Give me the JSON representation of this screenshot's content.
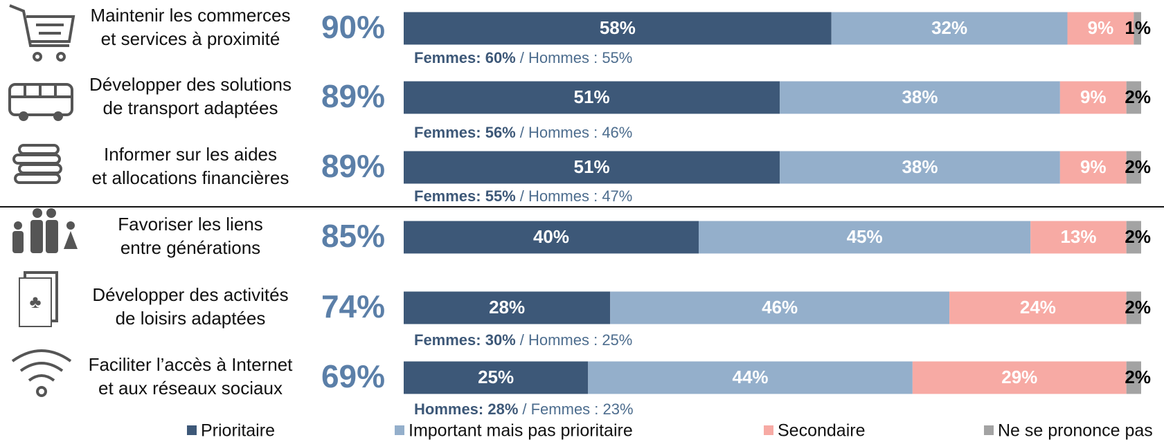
{
  "chart_data": {
    "type": "bar",
    "orientation": "horizontal",
    "stacked": true,
    "categories": [
      [
        "Maintenir les commerces",
        "et services à proximité"
      ],
      [
        "Développer des solutions",
        "de transport adaptées"
      ],
      [
        "Informer sur les aides",
        "et allocations financières"
      ],
      [
        "Favoriser les liens",
        "entre générations"
      ],
      [
        "Développer des activités",
        "de loisirs adaptées"
      ],
      [
        "Faciliter l’accès à Internet",
        "et aux réseaux sociaux"
      ]
    ],
    "xlim": [
      0,
      100
    ],
    "series": [
      {
        "name": "Prioritaire",
        "color": "#3d5878",
        "values": [
          58,
          51,
          51,
          40,
          28,
          25
        ],
        "value_labels": [
          "58%",
          "51%",
          "51%",
          "40%",
          "28%",
          "25%"
        ]
      },
      {
        "name": "Important mais pas prioritaire",
        "color": "#94afcb",
        "values": [
          32,
          38,
          38,
          45,
          46,
          44
        ],
        "value_labels": [
          "32%",
          "38%",
          "38%",
          "45%",
          "46%",
          "44%"
        ]
      },
      {
        "name": "Secondaire",
        "color": "#f7aaa4",
        "values": [
          9,
          9,
          9,
          13,
          24,
          29
        ],
        "value_labels": [
          "9%",
          "9%",
          "9%",
          "13%",
          "24%",
          "29%"
        ]
      },
      {
        "name": "Ne se prononce pas",
        "color": "#a3a3a3",
        "values": [
          1,
          2,
          2,
          2,
          2,
          2
        ],
        "value_labels": [
          "1%",
          "2%",
          "2%",
          "2%",
          "2%",
          "2%"
        ]
      }
    ],
    "totals": {
      "values": [
        90,
        89,
        89,
        85,
        74,
        69
      ],
      "value_labels": [
        "90%",
        "89%",
        "89%",
        "85%",
        "74%",
        "69%"
      ]
    },
    "notes": [
      {
        "bold": "Femmes: 60%",
        "rest": "/ Hommes : 55%"
      },
      {
        "bold": "Femmes: 56%",
        "rest": "/ Hommes : 46%"
      },
      {
        "bold": "Femmes: 55%",
        "rest": "/ Hommes : 47%"
      },
      null,
      {
        "bold": "Femmes: 30%",
        "rest": "/ Hommes : 25%"
      },
      {
        "bold": "Hommes: 28%",
        "rest": "/ Femmes : 23%"
      }
    ]
  }
}
